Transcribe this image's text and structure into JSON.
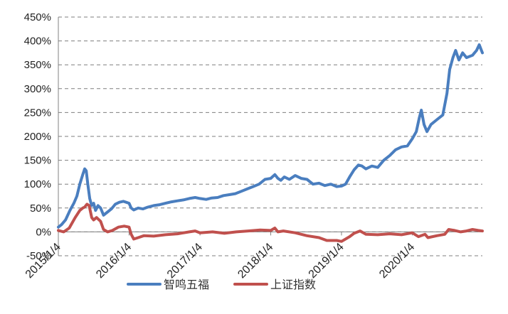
{
  "chart_data": {
    "type": "line",
    "title": "",
    "xlabel": "",
    "ylabel": "",
    "ylim": [
      -50,
      450
    ],
    "y_ticks": [
      "-50%",
      "0%",
      "50%",
      "100%",
      "150%",
      "200%",
      "250%",
      "300%",
      "350%",
      "400%",
      "450%"
    ],
    "y_tick_values": [
      -50,
      0,
      50,
      100,
      150,
      200,
      250,
      300,
      350,
      400,
      450
    ],
    "x_tick_labels": [
      "2015/1/4",
      "2016/1/4",
      "2017/1/4",
      "2018/1/4",
      "2019/1/4",
      "2020/1/4"
    ],
    "x_tick_dates": [
      "2015-01-04",
      "2016-01-04",
      "2017-01-04",
      "2018-01-04",
      "2019-01-04",
      "2020-01-04"
    ],
    "xlim": [
      "2015-01-04",
      "2020-12-31"
    ],
    "grid": true,
    "legend_position": "bottom",
    "series": [
      {
        "name": "智鸣五福",
        "color": "#4a7ebf",
        "points": [
          [
            "2015-01-04",
            10
          ],
          [
            "2015-01-20",
            15
          ],
          [
            "2015-02-10",
            25
          ],
          [
            "2015-03-05",
            45
          ],
          [
            "2015-03-25",
            60
          ],
          [
            "2015-04-10",
            75
          ],
          [
            "2015-04-25",
            100
          ],
          [
            "2015-05-10",
            120
          ],
          [
            "2015-05-20",
            132
          ],
          [
            "2015-05-28",
            128
          ],
          [
            "2015-06-05",
            100
          ],
          [
            "2015-06-15",
            70
          ],
          [
            "2015-06-25",
            55
          ],
          [
            "2015-07-05",
            60
          ],
          [
            "2015-07-15",
            45
          ],
          [
            "2015-07-28",
            55
          ],
          [
            "2015-08-10",
            50
          ],
          [
            "2015-08-25",
            35
          ],
          [
            "2015-09-10",
            40
          ],
          [
            "2015-10-05",
            48
          ],
          [
            "2015-10-25",
            58
          ],
          [
            "2015-11-15",
            62
          ],
          [
            "2015-12-05",
            64
          ],
          [
            "2015-12-20",
            62
          ],
          [
            "2016-01-04",
            60
          ],
          [
            "2016-01-15",
            50
          ],
          [
            "2016-01-28",
            46
          ],
          [
            "2016-02-20",
            50
          ],
          [
            "2016-03-15",
            48
          ],
          [
            "2016-04-10",
            52
          ],
          [
            "2016-05-10",
            55
          ],
          [
            "2016-06-10",
            57
          ],
          [
            "2016-07-10",
            60
          ],
          [
            "2016-08-10",
            63
          ],
          [
            "2016-09-10",
            65
          ],
          [
            "2016-10-10",
            67
          ],
          [
            "2016-11-10",
            70
          ],
          [
            "2016-12-10",
            72
          ],
          [
            "2017-01-04",
            70
          ],
          [
            "2017-02-05",
            68
          ],
          [
            "2017-03-05",
            71
          ],
          [
            "2017-04-05",
            72
          ],
          [
            "2017-05-05",
            76
          ],
          [
            "2017-06-05",
            78
          ],
          [
            "2017-07-05",
            80
          ],
          [
            "2017-08-05",
            85
          ],
          [
            "2017-09-05",
            90
          ],
          [
            "2017-10-05",
            95
          ],
          [
            "2017-11-05",
            100
          ],
          [
            "2017-12-05",
            110
          ],
          [
            "2018-01-04",
            112
          ],
          [
            "2018-01-25",
            120
          ],
          [
            "2018-02-10",
            112
          ],
          [
            "2018-02-25",
            108
          ],
          [
            "2018-03-15",
            115
          ],
          [
            "2018-04-10",
            110
          ],
          [
            "2018-05-10",
            118
          ],
          [
            "2018-06-10",
            112
          ],
          [
            "2018-07-10",
            110
          ],
          [
            "2018-08-10",
            100
          ],
          [
            "2018-09-10",
            102
          ],
          [
            "2018-10-10",
            97
          ],
          [
            "2018-11-10",
            100
          ],
          [
            "2018-12-10",
            95
          ],
          [
            "2019-01-04",
            96
          ],
          [
            "2019-01-25",
            100
          ],
          [
            "2019-02-15",
            115
          ],
          [
            "2019-03-10",
            130
          ],
          [
            "2019-04-01",
            140
          ],
          [
            "2019-04-20",
            138
          ],
          [
            "2019-05-10",
            132
          ],
          [
            "2019-06-10",
            138
          ],
          [
            "2019-07-10",
            135
          ],
          [
            "2019-08-10",
            150
          ],
          [
            "2019-09-10",
            160
          ],
          [
            "2019-10-10",
            172
          ],
          [
            "2019-11-10",
            178
          ],
          [
            "2019-12-10",
            180
          ],
          [
            "2020-01-04",
            195
          ],
          [
            "2020-01-25",
            210
          ],
          [
            "2020-02-10",
            240
          ],
          [
            "2020-02-20",
            255
          ],
          [
            "2020-03-05",
            225
          ],
          [
            "2020-03-20",
            210
          ],
          [
            "2020-04-10",
            225
          ],
          [
            "2020-05-10",
            235
          ],
          [
            "2020-06-10",
            245
          ],
          [
            "2020-07-01",
            290
          ],
          [
            "2020-07-15",
            340
          ],
          [
            "2020-08-01",
            365
          ],
          [
            "2020-08-15",
            380
          ],
          [
            "2020-09-01",
            360
          ],
          [
            "2020-09-20",
            375
          ],
          [
            "2020-10-10",
            365
          ],
          [
            "2020-11-10",
            370
          ],
          [
            "2020-12-01",
            380
          ],
          [
            "2020-12-15",
            392
          ],
          [
            "2020-12-31",
            375
          ]
        ]
      },
      {
        "name": "上证指数",
        "color": "#c0504d",
        "points": [
          [
            "2015-01-04",
            3
          ],
          [
            "2015-02-01",
            0
          ],
          [
            "2015-03-01",
            8
          ],
          [
            "2015-04-01",
            30
          ],
          [
            "2015-04-25",
            45
          ],
          [
            "2015-05-10",
            50
          ],
          [
            "2015-05-20",
            52
          ],
          [
            "2015-06-01",
            58
          ],
          [
            "2015-06-12",
            55
          ],
          [
            "2015-06-25",
            30
          ],
          [
            "2015-07-05",
            25
          ],
          [
            "2015-07-20",
            30
          ],
          [
            "2015-08-10",
            22
          ],
          [
            "2015-08-25",
            5
          ],
          [
            "2015-09-15",
            0
          ],
          [
            "2015-10-10",
            3
          ],
          [
            "2015-11-10",
            10
          ],
          [
            "2015-12-10",
            12
          ],
          [
            "2016-01-04",
            10
          ],
          [
            "2016-01-15",
            -5
          ],
          [
            "2016-01-28",
            -15
          ],
          [
            "2016-02-20",
            -12
          ],
          [
            "2016-03-20",
            -8
          ],
          [
            "2016-05-10",
            -9
          ],
          [
            "2016-07-10",
            -6
          ],
          [
            "2016-09-10",
            -4
          ],
          [
            "2016-11-10",
            0
          ],
          [
            "2016-12-10",
            2
          ],
          [
            "2017-01-04",
            -2
          ],
          [
            "2017-03-10",
            0
          ],
          [
            "2017-05-10",
            -3
          ],
          [
            "2017-07-10",
            0
          ],
          [
            "2017-09-10",
            2
          ],
          [
            "2017-11-10",
            4
          ],
          [
            "2018-01-04",
            3
          ],
          [
            "2018-01-25",
            8
          ],
          [
            "2018-02-10",
            0
          ],
          [
            "2018-03-10",
            2
          ],
          [
            "2018-05-10",
            -2
          ],
          [
            "2018-07-10",
            -8
          ],
          [
            "2018-09-10",
            -12
          ],
          [
            "2018-10-20",
            -18
          ],
          [
            "2018-12-10",
            -18
          ],
          [
            "2019-01-04",
            -20
          ],
          [
            "2019-02-15",
            -10
          ],
          [
            "2019-03-10",
            -3
          ],
          [
            "2019-04-10",
            2
          ],
          [
            "2019-05-10",
            -5
          ],
          [
            "2019-07-10",
            -6
          ],
          [
            "2019-09-10",
            -4
          ],
          [
            "2019-11-10",
            -6
          ],
          [
            "2020-01-04",
            -2
          ],
          [
            "2020-02-05",
            -10
          ],
          [
            "2020-03-10",
            -5
          ],
          [
            "2020-03-25",
            -12
          ],
          [
            "2020-05-10",
            -8
          ],
          [
            "2020-06-20",
            -5
          ],
          [
            "2020-07-10",
            5
          ],
          [
            "2020-08-10",
            3
          ],
          [
            "2020-09-10",
            0
          ],
          [
            "2020-10-10",
            2
          ],
          [
            "2020-11-10",
            5
          ],
          [
            "2020-12-10",
            3
          ],
          [
            "2020-12-31",
            2
          ]
        ]
      }
    ]
  }
}
